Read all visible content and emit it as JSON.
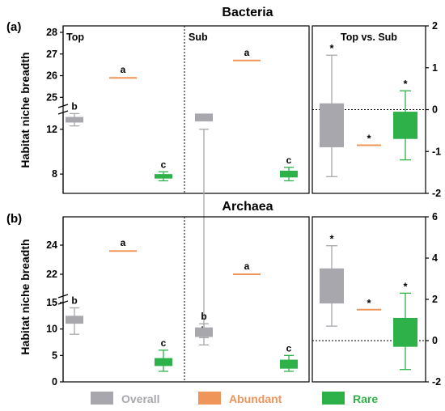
{
  "colors": {
    "overall": "#a7a7ad",
    "abundant": "#f0955a",
    "rare": "#2fb14a",
    "frame": "#000000"
  },
  "legend": [
    {
      "key": "overall",
      "label": "Overall"
    },
    {
      "key": "abundant",
      "label": "Abundant"
    },
    {
      "key": "rare",
      "label": "Rare"
    }
  ],
  "chart_data": [
    {
      "type": "box",
      "panel_letter": "(a)",
      "title": "Bacteria",
      "ylabel": "Habitat niche breadth",
      "y_axis": {
        "broken": true,
        "lower_segment": [
          7,
          13.5
        ],
        "upper_segment": [
          24.6,
          28
        ],
        "lower_ticks": [
          "8",
          "12"
        ],
        "upper_ticks": [
          "25",
          "26",
          "27",
          "28"
        ]
      },
      "subpanels": [
        {
          "label": "Top",
          "groups": [
            {
              "key": "overall",
              "min": 12.3,
              "q1": 12.6,
              "median": 12.9,
              "q3": 13.1,
              "max": 13.4,
              "letter": "b"
            },
            {
              "key": "abundant",
              "value": 25.9,
              "letter": "a"
            },
            {
              "key": "rare",
              "min": 7.4,
              "q1": 7.6,
              "median": 7.8,
              "q3": 8.0,
              "max": 8.2,
              "letter": "c"
            }
          ]
        },
        {
          "label": "Sub",
          "groups": [
            {
              "key": "overall",
              "min": 12.0,
              "q1": 12.7,
              "median": 13.1,
              "q3": 13.4,
              "max": 13.9,
              "letter": "b"
            },
            {
              "key": "abundant",
              "value": 26.7,
              "letter": "a"
            },
            {
              "key": "rare",
              "min": 7.4,
              "q1": 7.7,
              "median": 8.0,
              "q3": 8.3,
              "max": 8.6,
              "letter": "c"
            }
          ]
        }
      ],
      "difference": {
        "label": "Top vs. Sub",
        "ylim": [
          -2,
          2
        ],
        "ticks": [
          "-2",
          "-1",
          "0",
          "1",
          "2"
        ],
        "groups": [
          {
            "key": "overall",
            "min": -1.6,
            "q1": -0.9,
            "median": -0.3,
            "q3": 0.15,
            "max": 1.3,
            "letter": "*"
          },
          {
            "key": "abundant",
            "value": -0.85,
            "letter": "*"
          },
          {
            "key": "rare",
            "min": -1.2,
            "q1": -0.7,
            "median": -0.35,
            "q3": -0.05,
            "max": 0.45,
            "letter": "*"
          }
        ]
      }
    },
    {
      "type": "box",
      "panel_letter": "(b)",
      "title": "Archaea",
      "ylabel": "Habitat niche breadth",
      "y_axis": {
        "broken": true,
        "lower_segment": [
          0,
          15
        ],
        "upper_segment": [
          20.5,
          25.5
        ],
        "lower_ticks": [
          "0",
          "5",
          "10",
          "15"
        ],
        "upper_ticks": [
          "22",
          "24"
        ]
      },
      "subpanels": [
        {
          "label": "",
          "groups": [
            {
              "key": "overall",
              "min": 9.0,
              "q1": 11.0,
              "median": 11.8,
              "q3": 12.5,
              "max": 14.0,
              "letter": "b"
            },
            {
              "key": "abundant",
              "value": 23.6,
              "letter": "a"
            },
            {
              "key": "rare",
              "min": 2.0,
              "q1": 3.0,
              "median": 4.0,
              "q3": 4.5,
              "max": 6.0,
              "letter": "c"
            }
          ]
        },
        {
          "label": "",
          "groups": [
            {
              "key": "overall",
              "min": 7.0,
              "q1": 8.5,
              "median": 9.5,
              "q3": 10.3,
              "max": 11.0,
              "letter": "b"
            },
            {
              "key": "abundant",
              "value": 22.0,
              "letter": "a"
            },
            {
              "key": "rare",
              "min": 2.0,
              "q1": 2.5,
              "median": 3.5,
              "q3": 4.2,
              "max": 5.0,
              "letter": "c"
            }
          ]
        }
      ],
      "difference": {
        "label": "",
        "ylim": [
          -2,
          6
        ],
        "ticks": [
          "-2",
          "0",
          "2",
          "4",
          "6"
        ],
        "groups": [
          {
            "key": "overall",
            "min": 0.7,
            "q1": 1.8,
            "median": 2.4,
            "q3": 3.5,
            "max": 4.6,
            "letter": "*"
          },
          {
            "key": "abundant",
            "value": 1.5,
            "letter": "*"
          },
          {
            "key": "rare",
            "min": -1.4,
            "q1": -0.3,
            "median": 0.6,
            "q3": 1.1,
            "max": 2.3,
            "letter": "*"
          }
        ]
      }
    }
  ]
}
